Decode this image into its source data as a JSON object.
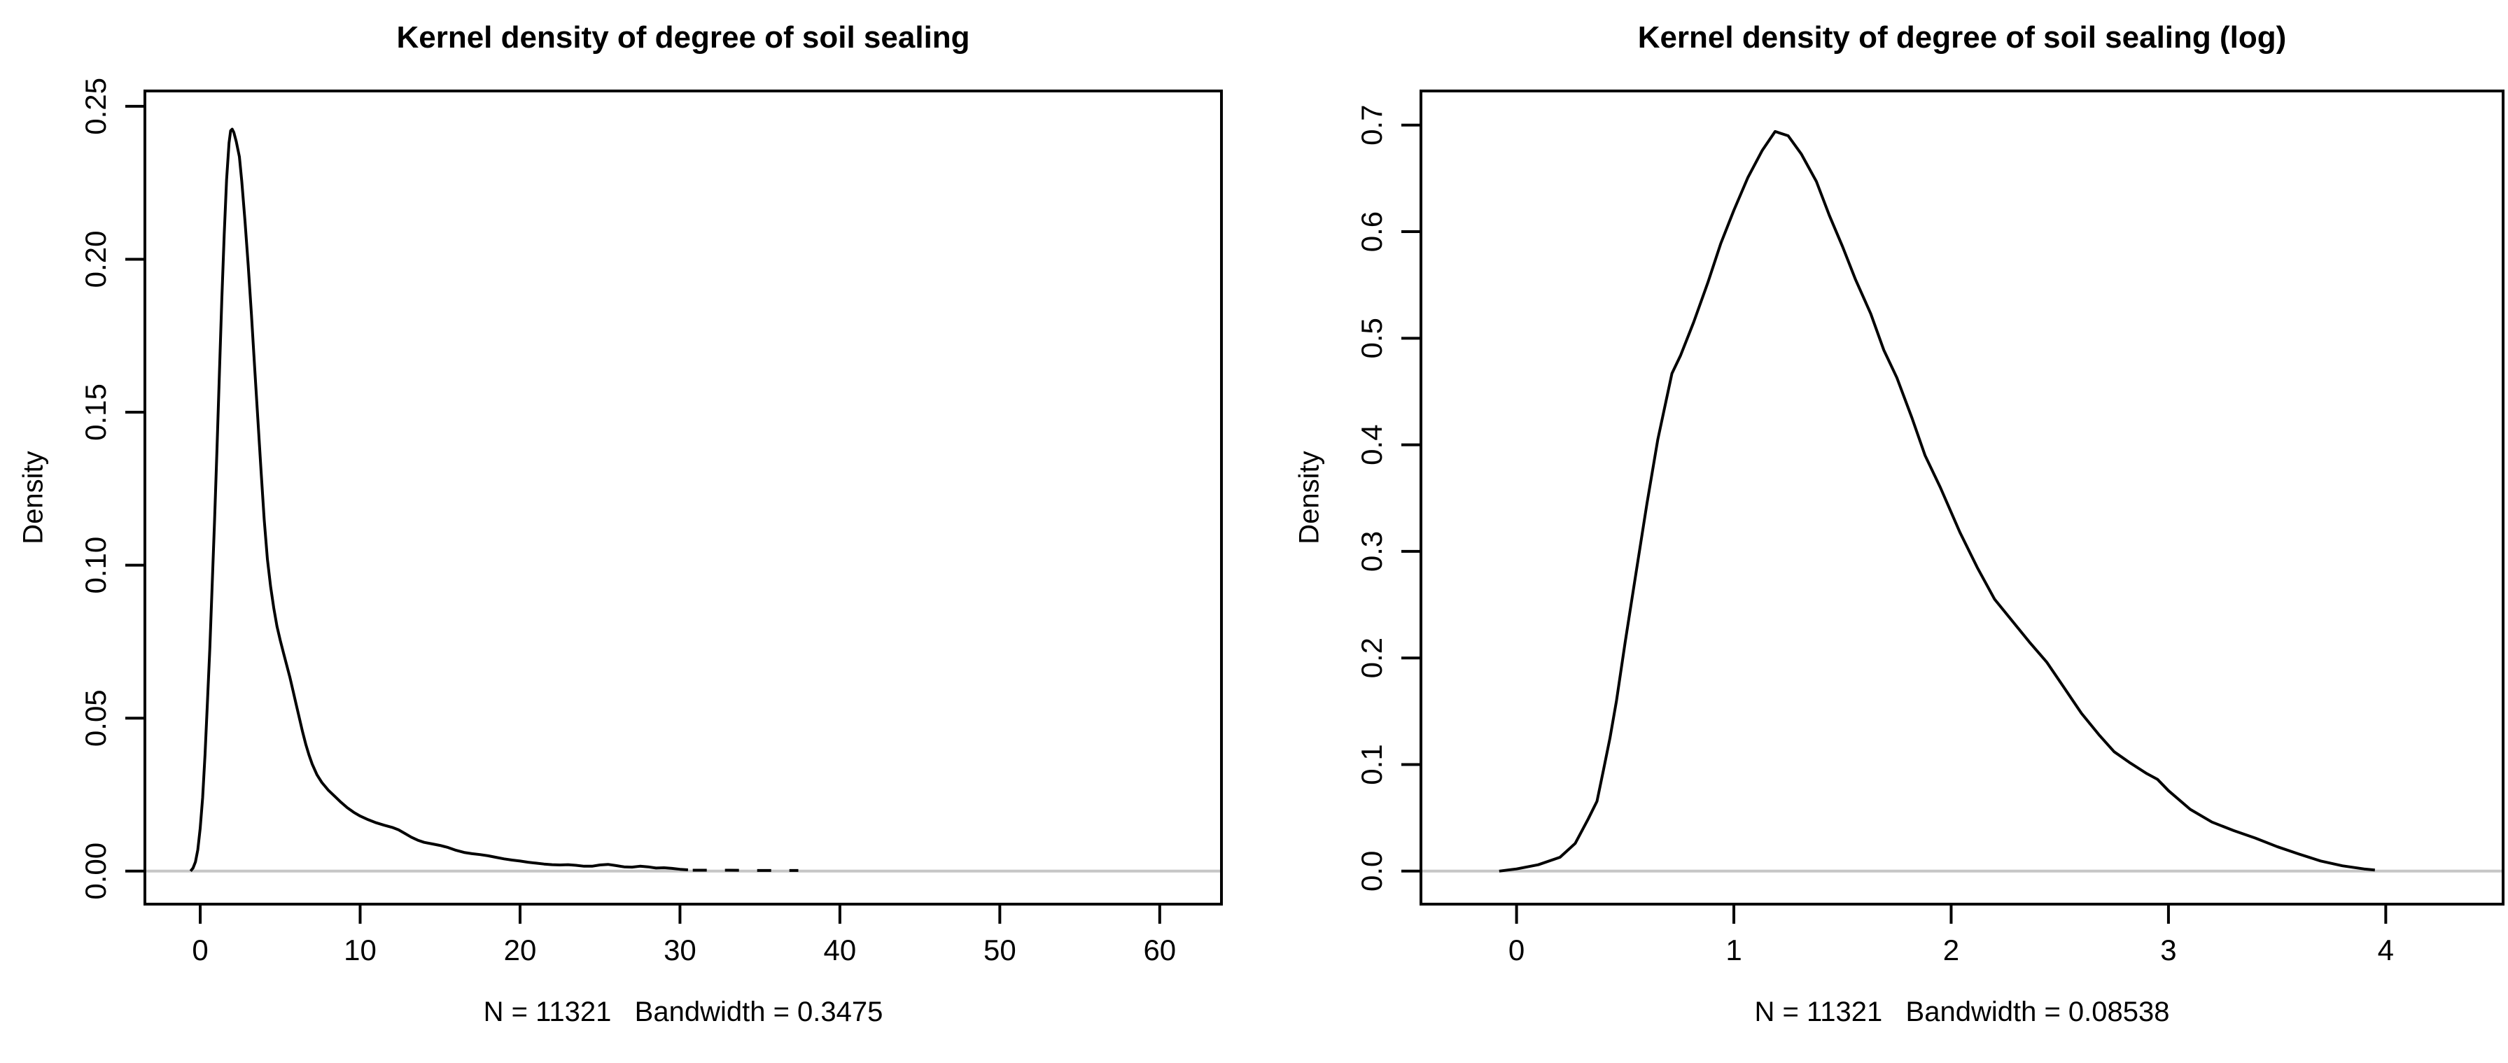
{
  "figure": {
    "background": "#ffffff",
    "stroke_color": "#000000",
    "zero_line_color": "#c6c6c6",
    "text_color": "#000000"
  },
  "chart_data": [
    {
      "type": "line",
      "title": "Kernel density of degree of soil sealing",
      "xlabel": "N = 11321   Bandwidth = 0.3475",
      "ylabel": "Density",
      "x_ticks": [
        "0",
        "10",
        "20",
        "30",
        "40",
        "50",
        "60"
      ],
      "x_tick_values": [
        0,
        10,
        20,
        30,
        40,
        50,
        60
      ],
      "y_ticks": [
        "0.00",
        "0.05",
        "0.10",
        "0.15",
        "0.20",
        "0.25"
      ],
      "y_tick_values": [
        0,
        0.05,
        0.1,
        0.15,
        0.2,
        0.25
      ],
      "xlim": [
        -3.46,
        63.86
      ],
      "ylim": [
        -0.0108,
        0.255
      ],
      "grid": false,
      "legend": null,
      "n": 11321,
      "bandwidth": 0.3475,
      "series": [
        {
          "name": "density",
          "dash": false,
          "points": [
            [
              -0.6,
              0
            ],
            [
              -0.45,
              0.001
            ],
            [
              -0.3,
              0.003
            ],
            [
              -0.15,
              0.007
            ],
            [
              0,
              0.014
            ],
            [
              0.15,
              0.024
            ],
            [
              0.3,
              0.038
            ],
            [
              0.45,
              0.055
            ],
            [
              0.6,
              0.073
            ],
            [
              0.75,
              0.094
            ],
            [
              0.9,
              0.115
            ],
            [
              1.05,
              0.138
            ],
            [
              1.2,
              0.163
            ],
            [
              1.35,
              0.187
            ],
            [
              1.5,
              0.208
            ],
            [
              1.65,
              0.226
            ],
            [
              1.8,
              0.238
            ],
            [
              1.9,
              0.242
            ],
            [
              2.0,
              0.2425
            ],
            [
              2.1,
              0.2415
            ],
            [
              2.25,
              0.2385
            ],
            [
              2.45,
              0.2335
            ],
            [
              2.6,
              0.2255
            ],
            [
              2.8,
              0.2125
            ],
            [
              3.0,
              0.198
            ],
            [
              3.2,
              0.182
            ],
            [
              3.4,
              0.165
            ],
            [
              3.6,
              0.148
            ],
            [
              3.8,
              0.131
            ],
            [
              4.0,
              0.115
            ],
            [
              4.2,
              0.102
            ],
            [
              4.4,
              0.093
            ],
            [
              4.6,
              0.086
            ],
            [
              4.8,
              0.08
            ],
            [
              5.0,
              0.0755
            ],
            [
              5.2,
              0.0715
            ],
            [
              5.4,
              0.0675
            ],
            [
              5.6,
              0.0635
            ],
            [
              5.8,
              0.059
            ],
            [
              6.0,
              0.0545
            ],
            [
              6.2,
              0.05
            ],
            [
              6.4,
              0.0455
            ],
            [
              6.6,
              0.0415
            ],
            [
              6.8,
              0.038
            ],
            [
              7.0,
              0.035
            ],
            [
              7.3,
              0.0315
            ],
            [
              7.6,
              0.029
            ],
            [
              8.0,
              0.0265
            ],
            [
              8.4,
              0.0245
            ],
            [
              8.8,
              0.0225
            ],
            [
              9.2,
              0.0207
            ],
            [
              9.6,
              0.0192
            ],
            [
              10.0,
              0.018
            ],
            [
              10.5,
              0.0168
            ],
            [
              11.0,
              0.0158
            ],
            [
              11.5,
              0.015
            ],
            [
              12.0,
              0.0143
            ],
            [
              12.4,
              0.0135
            ],
            [
              12.8,
              0.0123
            ],
            [
              13.2,
              0.0111
            ],
            [
              13.6,
              0.0101
            ],
            [
              14.0,
              0.0094
            ],
            [
              14.5,
              0.0089
            ],
            [
              15.0,
              0.0084
            ],
            [
              15.5,
              0.0077
            ],
            [
              16.0,
              0.0068
            ],
            [
              16.5,
              0.0061
            ],
            [
              17.0,
              0.0057
            ],
            [
              17.5,
              0.0054
            ],
            [
              18.0,
              0.005
            ],
            [
              18.5,
              0.0045
            ],
            [
              19.0,
              0.004
            ],
            [
              19.5,
              0.0036
            ],
            [
              20.0,
              0.0033
            ],
            [
              20.5,
              0.0029
            ],
            [
              21.0,
              0.0026
            ],
            [
              21.5,
              0.0023
            ],
            [
              22.0,
              0.0021
            ],
            [
              22.5,
              0.002
            ],
            [
              23.0,
              0.0021
            ],
            [
              23.5,
              0.0019
            ],
            [
              24.0,
              0.0016
            ],
            [
              24.5,
              0.0016
            ],
            [
              25.0,
              0.002
            ],
            [
              25.5,
              0.0022
            ],
            [
              26.0,
              0.0018
            ],
            [
              26.5,
              0.0014
            ],
            [
              27.0,
              0.0013
            ],
            [
              27.5,
              0.0016
            ],
            [
              28.0,
              0.0014
            ],
            [
              28.5,
              0.001
            ],
            [
              29.0,
              0.0011
            ],
            [
              29.5,
              0.0009
            ],
            [
              30.0,
              0.0006
            ],
            [
              30.5,
              0.0004
            ]
          ]
        },
        {
          "name": "near-zero-tail",
          "dash": true,
          "points": [
            [
              30.8,
              0.0003
            ],
            [
              33.0,
              0.0003
            ],
            [
              35.0,
              0.0002
            ],
            [
              37.4,
              0.0002
            ]
          ]
        }
      ]
    },
    {
      "type": "line",
      "title": "Kernel density of degree of soil sealing (log)",
      "xlabel": "N = 11321   Bandwidth = 0.08538",
      "ylabel": "Density",
      "x_ticks": [
        "0",
        "1",
        "2",
        "3",
        "4"
      ],
      "x_tick_values": [
        0,
        1,
        2,
        3,
        4
      ],
      "y_ticks": [
        "0.0",
        "0.1",
        "0.2",
        "0.3",
        "0.4",
        "0.5",
        "0.6",
        "0.7"
      ],
      "y_tick_values": [
        0,
        0.1,
        0.2,
        0.3,
        0.4,
        0.5,
        0.6,
        0.7
      ],
      "xlim": [
        -0.44,
        4.54
      ],
      "ylim": [
        -0.031,
        0.732
      ],
      "grid": false,
      "legend": null,
      "n": 11321,
      "bandwidth": 0.08538,
      "series": [
        {
          "name": "density",
          "dash": false,
          "points": [
            [
              -0.08,
              0
            ],
            [
              0,
              0.002
            ],
            [
              0.1,
              0.006
            ],
            [
              0.2,
              0.013
            ],
            [
              0.27,
              0.026
            ],
            [
              0.33,
              0.049
            ],
            [
              0.37,
              0.0655
            ],
            [
              0.4,
              0.095
            ],
            [
              0.43,
              0.125
            ],
            [
              0.46,
              0.16
            ],
            [
              0.5,
              0.215
            ],
            [
              0.55,
              0.28
            ],
            [
              0.6,
              0.345
            ],
            [
              0.65,
              0.405
            ],
            [
              0.715,
              0.467
            ],
            [
              0.755,
              0.484
            ],
            [
              0.815,
              0.515
            ],
            [
              0.88,
              0.552
            ],
            [
              0.94,
              0.589
            ],
            [
              1.0,
              0.62
            ],
            [
              1.065,
              0.651
            ],
            [
              1.13,
              0.676
            ],
            [
              1.19,
              0.694
            ],
            [
              1.25,
              0.69
            ],
            [
              1.31,
              0.673
            ],
            [
              1.38,
              0.647
            ],
            [
              1.44,
              0.615
            ],
            [
              1.5,
              0.586
            ],
            [
              1.56,
              0.555
            ],
            [
              1.63,
              0.523
            ],
            [
              1.69,
              0.489
            ],
            [
              1.75,
              0.463
            ],
            [
              1.82,
              0.425
            ],
            [
              1.88,
              0.39
            ],
            [
              1.95,
              0.36
            ],
            [
              2.04,
              0.318
            ],
            [
              2.12,
              0.285
            ],
            [
              2.2,
              0.255
            ],
            [
              2.28,
              0.235
            ],
            [
              2.36,
              0.215
            ],
            [
              2.44,
              0.196
            ],
            [
              2.52,
              0.172
            ],
            [
              2.6,
              0.148
            ],
            [
              2.68,
              0.128
            ],
            [
              2.75,
              0.112
            ],
            [
              2.82,
              0.102
            ],
            [
              2.9,
              0.0915
            ],
            [
              2.95,
              0.086
            ],
            [
              3.0,
              0.0755
            ],
            [
              3.1,
              0.058
            ],
            [
              3.2,
              0.046
            ],
            [
              3.3,
              0.038
            ],
            [
              3.4,
              0.031
            ],
            [
              3.5,
              0.023
            ],
            [
              3.6,
              0.016
            ],
            [
              3.7,
              0.0095
            ],
            [
              3.8,
              0.005
            ],
            [
              3.9,
              0.002
            ],
            [
              3.95,
              0.001
            ]
          ]
        }
      ]
    }
  ]
}
